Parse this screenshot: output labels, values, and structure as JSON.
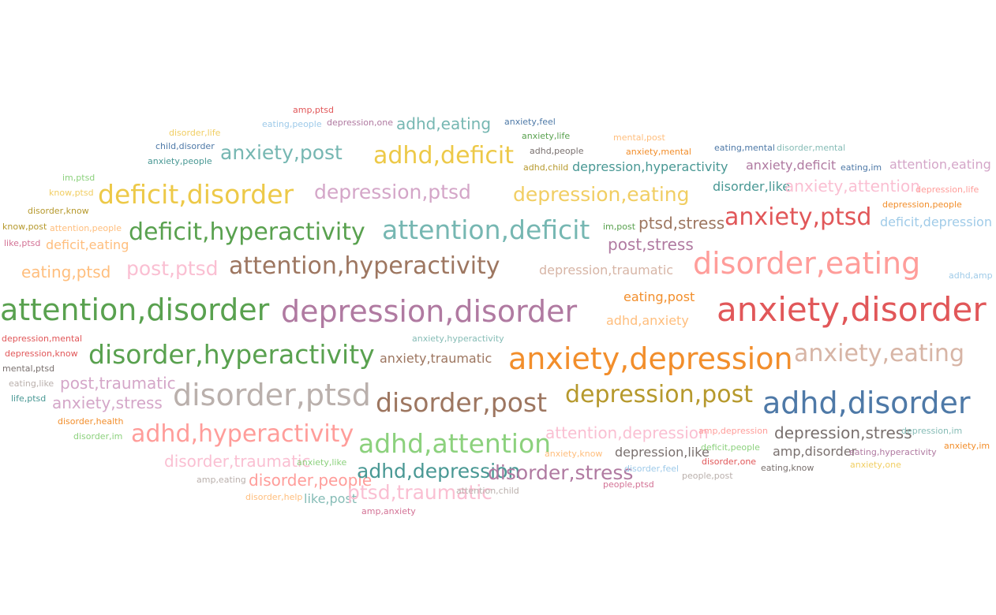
{
  "words": [
    {
      "text": "amp,ptsd",
      "color": "#e15759",
      "weight": 1
    },
    {
      "text": "eating,people",
      "color": "#9ecae9",
      "weight": 1
    },
    {
      "text": "depression,one",
      "color": "#b07aa1",
      "weight": 1
    },
    {
      "text": "adhd,eating",
      "color": "#76b7b2",
      "weight": 3
    },
    {
      "text": "anxiety,feel",
      "color": "#4e79a7",
      "weight": 1
    },
    {
      "text": "disorder,life",
      "color": "#f1ce63",
      "weight": 1
    },
    {
      "text": "mental,post",
      "color": "#ffbe7d",
      "weight": 1
    },
    {
      "text": "anxiety,life",
      "color": "#59a14f",
      "weight": 1
    },
    {
      "text": "child,disorder",
      "color": "#4e79a7",
      "weight": 1
    },
    {
      "text": "anxiety,post",
      "color": "#76b7b2",
      "weight": 4
    },
    {
      "text": "adhd,deficit",
      "color": "#edc948",
      "weight": 5
    },
    {
      "text": "adhd,people",
      "color": "#79706e",
      "weight": 1
    },
    {
      "text": "anxiety,mental",
      "color": "#f28e2b",
      "weight": 1
    },
    {
      "text": "eating,mental",
      "color": "#4e79a7",
      "weight": 1
    },
    {
      "text": "disorder,mental",
      "color": "#86bcb6",
      "weight": 1
    },
    {
      "text": "anxiety,people",
      "color": "#499894",
      "weight": 1
    },
    {
      "text": "adhd,child",
      "color": "#b6992d",
      "weight": 1
    },
    {
      "text": "depression,hyperactivity",
      "color": "#499894",
      "weight": 2
    },
    {
      "text": "anxiety,deficit",
      "color": "#b07aa1",
      "weight": 2
    },
    {
      "text": "eating,im",
      "color": "#4e79a7",
      "weight": 1
    },
    {
      "text": "attention,eating",
      "color": "#d4a6c8",
      "weight": 2
    },
    {
      "text": "im,ptsd",
      "color": "#8cd17d",
      "weight": 1
    },
    {
      "text": "know,ptsd",
      "color": "#f1ce63",
      "weight": 1
    },
    {
      "text": "deficit,disorder",
      "color": "#edc948",
      "weight": 6
    },
    {
      "text": "depression,ptsd",
      "color": "#d4a6c8",
      "weight": 4
    },
    {
      "text": "depression,eating",
      "color": "#f1ce63",
      "weight": 4
    },
    {
      "text": "disorder,like",
      "color": "#499894",
      "weight": 2
    },
    {
      "text": "anxiety,attention",
      "color": "#fabfd2",
      "weight": 3
    },
    {
      "text": "depression,life",
      "color": "#ff9d9a",
      "weight": 1
    },
    {
      "text": "disorder,know",
      "color": "#b6992d",
      "weight": 1
    },
    {
      "text": "depression,people",
      "color": "#f28e2b",
      "weight": 1
    },
    {
      "text": "know,post",
      "color": "#b6992d",
      "weight": 1
    },
    {
      "text": "attention,people",
      "color": "#ffbe7d",
      "weight": 1
    },
    {
      "text": "deficit,hyperactivity",
      "color": "#59a14f",
      "weight": 5
    },
    {
      "text": "attention,deficit",
      "color": "#76b7b2",
      "weight": 6
    },
    {
      "text": "im,post",
      "color": "#59a14f",
      "weight": 1
    },
    {
      "text": "ptsd,stress",
      "color": "#9d7660",
      "weight": 3
    },
    {
      "text": "anxiety,ptsd",
      "color": "#e15759",
      "weight": 5
    },
    {
      "text": "deficit,depression",
      "color": "#a0cbe8",
      "weight": 2
    },
    {
      "text": "like,ptsd",
      "color": "#d37295",
      "weight": 1
    },
    {
      "text": "deficit,eating",
      "color": "#ffbe7d",
      "weight": 2
    },
    {
      "text": "post,stress",
      "color": "#b07aa1",
      "weight": 3
    },
    {
      "text": "eating,ptsd",
      "color": "#ffbe7d",
      "weight": 3
    },
    {
      "text": "post,ptsd",
      "color": "#fabfd2",
      "weight": 4
    },
    {
      "text": "attention,hyperactivity",
      "color": "#9d7660",
      "weight": 5
    },
    {
      "text": "depression,traumatic",
      "color": "#d7b5a6",
      "weight": 2
    },
    {
      "text": "disorder,eating",
      "color": "#ff9d9a",
      "weight": 7
    },
    {
      "text": "adhd,amp",
      "color": "#a0cbe8",
      "weight": 1
    },
    {
      "text": "eating,post",
      "color": "#f28e2b",
      "weight": 2
    },
    {
      "text": "attention,disorder",
      "color": "#59a14f",
      "weight": 7
    },
    {
      "text": "depression,disorder",
      "color": "#b07aa1",
      "weight": 7
    },
    {
      "text": "anxiety,disorder",
      "color": "#e15759",
      "weight": 8
    },
    {
      "text": "adhd,anxiety",
      "color": "#ffbe7d",
      "weight": 2
    },
    {
      "text": "depression,mental",
      "color": "#e15759",
      "weight": 1
    },
    {
      "text": "anxiety,hyperactivity",
      "color": "#86bcb6",
      "weight": 1
    },
    {
      "text": "depression,know",
      "color": "#e15759",
      "weight": 1
    },
    {
      "text": "disorder,hyperactivity",
      "color": "#59a14f",
      "weight": 6
    },
    {
      "text": "anxiety,traumatic",
      "color": "#9d7660",
      "weight": 2
    },
    {
      "text": "anxiety,depression",
      "color": "#f28e2b",
      "weight": 7
    },
    {
      "text": "anxiety,eating",
      "color": "#d7b5a6",
      "weight": 5
    },
    {
      "text": "mental,ptsd",
      "color": "#79706e",
      "weight": 1
    },
    {
      "text": "eating,like",
      "color": "#bab0ac",
      "weight": 1
    },
    {
      "text": "post,traumatic",
      "color": "#d4a6c8",
      "weight": 3
    },
    {
      "text": "disorder,ptsd",
      "color": "#bab0ac",
      "weight": 7
    },
    {
      "text": "disorder,post",
      "color": "#9d7660",
      "weight": 6
    },
    {
      "text": "depression,post",
      "color": "#b6992d",
      "weight": 5
    },
    {
      "text": "adhd,disorder",
      "color": "#4e79a7",
      "weight": 7
    },
    {
      "text": "life,ptsd",
      "color": "#499894",
      "weight": 1
    },
    {
      "text": "anxiety,stress",
      "color": "#d4a6c8",
      "weight": 3
    },
    {
      "text": "disorder,health",
      "color": "#f28e2b",
      "weight": 1
    },
    {
      "text": "disorder,im",
      "color": "#8cd17d",
      "weight": 1
    },
    {
      "text": "adhd,hyperactivity",
      "color": "#ff9d9a",
      "weight": 5
    },
    {
      "text": "adhd,attention",
      "color": "#8cd17d",
      "weight": 6
    },
    {
      "text": "attention,depression",
      "color": "#fabfd2",
      "weight": 3
    },
    {
      "text": "amp,depression",
      "color": "#ff9d9a",
      "weight": 1
    },
    {
      "text": "depression,stress",
      "color": "#79706e",
      "weight": 3
    },
    {
      "text": "depression,im",
      "color": "#86bcb6",
      "weight": 1
    },
    {
      "text": "anxiety,im",
      "color": "#f28e2b",
      "weight": 1
    },
    {
      "text": "disorder,traumatic",
      "color": "#fabfd2",
      "weight": 3
    },
    {
      "text": "anxiety,like",
      "color": "#8cd17d",
      "weight": 1
    },
    {
      "text": "anxiety,know",
      "color": "#ffbe7d",
      "weight": 1
    },
    {
      "text": "depression,like",
      "color": "#79706e",
      "weight": 2
    },
    {
      "text": "deficit,people",
      "color": "#8cd17d",
      "weight": 1
    },
    {
      "text": "amp,disorder",
      "color": "#79706e",
      "weight": 2
    },
    {
      "text": "eating,hyperactivity",
      "color": "#b07aa1",
      "weight": 1
    },
    {
      "text": "disorder,one",
      "color": "#e15759",
      "weight": 1
    },
    {
      "text": "anxiety,one",
      "color": "#f1ce63",
      "weight": 1
    },
    {
      "text": "amp,eating",
      "color": "#bab0ac",
      "weight": 1
    },
    {
      "text": "disorder,people",
      "color": "#ff9d9a",
      "weight": 3
    },
    {
      "text": "adhd,depression",
      "color": "#499894",
      "weight": 4
    },
    {
      "text": "disorder,stress",
      "color": "#b07aa1",
      "weight": 4
    },
    {
      "text": "disorder,feel",
      "color": "#9ecae9",
      "weight": 1
    },
    {
      "text": "eating,know",
      "color": "#79706e",
      "weight": 1
    },
    {
      "text": "people,post",
      "color": "#bab0ac",
      "weight": 1
    },
    {
      "text": "disorder,help",
      "color": "#ffbe7d",
      "weight": 1
    },
    {
      "text": "like,post",
      "color": "#86bcb6",
      "weight": 2
    },
    {
      "text": "ptsd,traumatic",
      "color": "#fabfd2",
      "weight": 4
    },
    {
      "text": "attention,child",
      "color": "#bab0ac",
      "weight": 1
    },
    {
      "text": "people,ptsd",
      "color": "#d37295",
      "weight": 1
    },
    {
      "text": "amp,anxiety",
      "color": "#d37295",
      "weight": 1
    }
  ]
}
